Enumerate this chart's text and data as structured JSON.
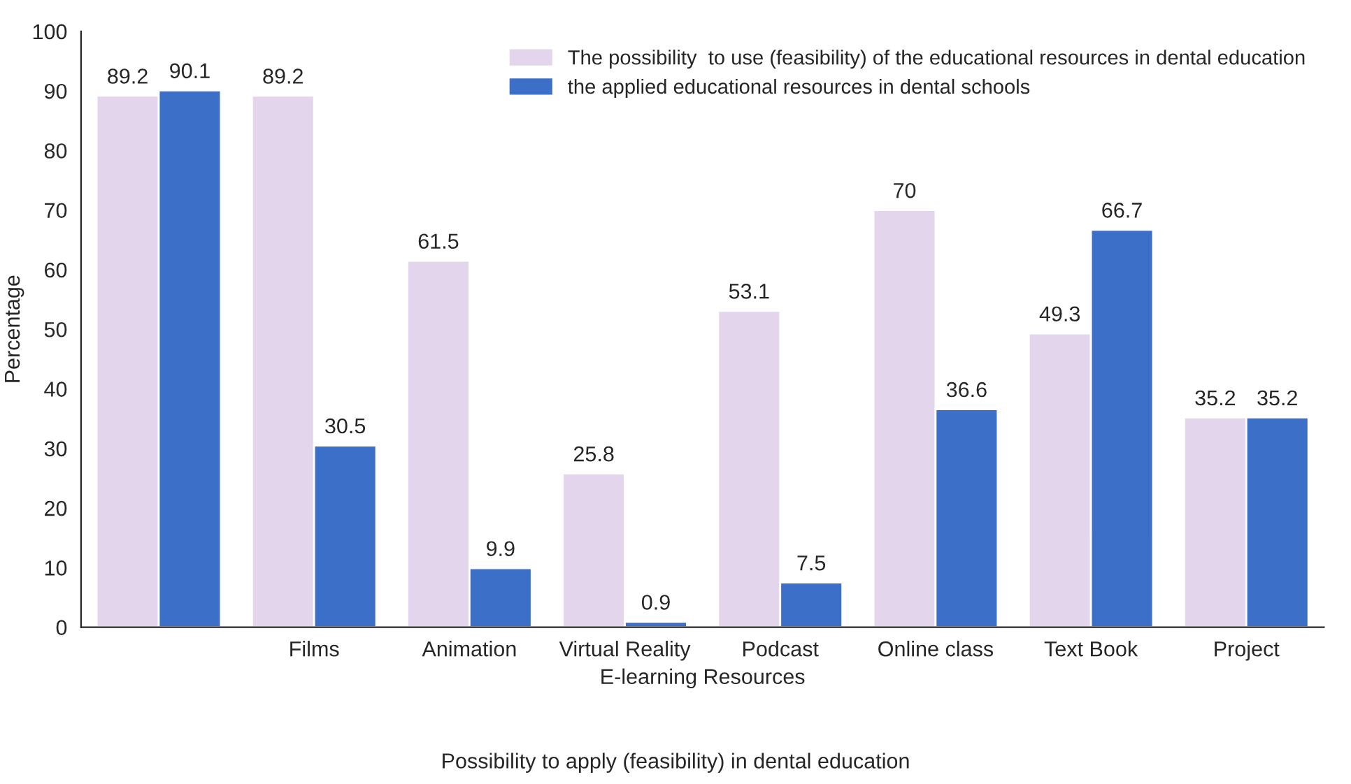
{
  "chart_data": {
    "type": "bar",
    "xlabel": "E-learning Resources",
    "ylabel": "Percentage",
    "categories": [
      null,
      "Films",
      "Animation",
      "Virtual Reality",
      "Podcast",
      "Online class",
      "Text Book",
      "Project"
    ],
    "series": [
      {
        "name": "The possibility  to use (feasibility) of the educational resources in dental education",
        "color": "#e3d6ec",
        "values": [
          89.2,
          89.2,
          61.5,
          25.8,
          53.1,
          70,
          49.3,
          35.2
        ]
      },
      {
        "name": "the applied educational resources in dental schools",
        "color": "#3c6fc8",
        "values": [
          90.1,
          30.5,
          9.9,
          0.9,
          7.5,
          36.6,
          66.7,
          35.2
        ]
      }
    ],
    "ylim": [
      0,
      100
    ],
    "yticks": [
      0,
      10,
      20,
      30,
      40,
      50,
      60,
      70,
      80,
      90,
      100
    ],
    "data_labels": true,
    "legend": "top right",
    "grid": false,
    "annotations": [
      "Possibility to apply (feasibility) in dental education"
    ]
  }
}
